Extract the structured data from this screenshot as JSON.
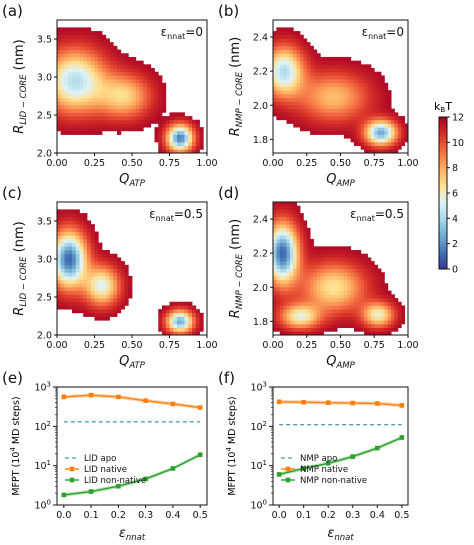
{
  "colorbar": {
    "label": "k",
    "label_sub": "B",
    "label_tail": "T",
    "ticks": [
      "0",
      "2",
      "4",
      "6",
      "8",
      "10",
      "12"
    ],
    "range": [
      0,
      12
    ],
    "colors": [
      "#313695",
      "#4575b4",
      "#74add1",
      "#abd9e9",
      "#e0f3f8",
      "#fee090",
      "#fdae61",
      "#f46d43",
      "#d73027",
      "#a50026"
    ]
  },
  "chart_data": [
    {
      "panel": "(a)",
      "type": "heatmap",
      "epsilon_label": "ε",
      "epsilon_sub": "nnat",
      "epsilon_value": "=0",
      "xlabel": "Q",
      "xlabel_sub": "ATP",
      "ylabel": "R",
      "ylabel_sub": "LID − CORE",
      "ylabel_unit": " (nm)",
      "xlim": [
        0.0,
        1.0
      ],
      "ylim": [
        2.0,
        3.75
      ],
      "xticks": [
        "0.00",
        "0.25",
        "0.50",
        "0.75",
        "1.00"
      ],
      "yticks": [
        {
          "v": 2.0,
          "t": "2.0"
        },
        {
          "v": 2.5,
          "t": "2.5"
        },
        {
          "v": 3.0,
          "t": "3.0"
        },
        {
          "v": 3.5,
          "t": "3.5"
        }
      ],
      "minima": [
        {
          "x": 0.12,
          "y": 2.95,
          "depth": 7.0,
          "sx": 0.14,
          "sy": 0.28
        },
        {
          "x": 0.45,
          "y": 2.75,
          "depth": 4.5,
          "sx": 0.12,
          "sy": 0.2
        },
        {
          "x": 0.82,
          "y": 2.2,
          "depth": 9.5,
          "sx": 0.06,
          "sy": 0.12
        }
      ]
    },
    {
      "panel": "(b)",
      "type": "heatmap",
      "epsilon_label": "ε",
      "epsilon_sub": "nnat",
      "epsilon_value": "=0",
      "xlabel": "Q",
      "xlabel_sub": "AMP",
      "ylabel": "R",
      "ylabel_sub": "NMP − CORE",
      "ylabel_unit": " (nm)",
      "xlim": [
        0.0,
        1.0
      ],
      "ylim": [
        1.72,
        2.5
      ],
      "xticks": [
        "0.00",
        "0.25",
        "0.50",
        "0.75",
        "1.00"
      ],
      "yticks": [
        {
          "v": 1.8,
          "t": "1.8"
        },
        {
          "v": 2.0,
          "t": "2.0"
        },
        {
          "v": 2.2,
          "t": "2.2"
        },
        {
          "v": 2.4,
          "t": "2.4"
        }
      ],
      "minima": [
        {
          "x": 0.08,
          "y": 2.2,
          "depth": 7.0,
          "sx": 0.1,
          "sy": 0.1
        },
        {
          "x": 0.45,
          "y": 2.05,
          "depth": 4.0,
          "sx": 0.18,
          "sy": 0.1
        },
        {
          "x": 0.8,
          "y": 1.84,
          "depth": 8.5,
          "sx": 0.08,
          "sy": 0.05
        }
      ]
    },
    {
      "panel": "(c)",
      "type": "heatmap",
      "epsilon_label": "ε",
      "epsilon_sub": "nnat",
      "epsilon_value": "=0.5",
      "xlabel": "Q",
      "xlabel_sub": "ATP",
      "ylabel": "R",
      "ylabel_sub": "LID − CORE",
      "ylabel_unit": " (nm)",
      "xlim": [
        0.0,
        1.0
      ],
      "ylim": [
        2.0,
        3.75
      ],
      "xticks": [
        "0.00",
        "0.25",
        "0.50",
        "0.75",
        "1.00"
      ],
      "yticks": [
        {
          "v": 2.0,
          "t": "2.0"
        },
        {
          "v": 2.5,
          "t": "2.5"
        },
        {
          "v": 3.0,
          "t": "3.0"
        },
        {
          "v": 3.5,
          "t": "3.5"
        }
      ],
      "minima": [
        {
          "x": 0.08,
          "y": 3.0,
          "depth": 10.0,
          "sx": 0.08,
          "sy": 0.25
        },
        {
          "x": 0.3,
          "y": 2.65,
          "depth": 6.0,
          "sx": 0.08,
          "sy": 0.18
        },
        {
          "x": 0.82,
          "y": 2.18,
          "depth": 8.5,
          "sx": 0.06,
          "sy": 0.1
        }
      ]
    },
    {
      "panel": "(d)",
      "type": "heatmap",
      "epsilon_label": "ε",
      "epsilon_sub": "nnat",
      "epsilon_value": "=0.5",
      "xlabel": "Q",
      "xlabel_sub": "AMP",
      "ylabel": "R",
      "ylabel_sub": "NMP − CORE",
      "ylabel_unit": " (nm)",
      "xlim": [
        0.0,
        1.0
      ],
      "ylim": [
        1.72,
        2.5
      ],
      "xticks": [
        "0.00",
        "0.25",
        "0.50",
        "0.75",
        "1.00"
      ],
      "yticks": [
        {
          "v": 1.8,
          "t": "1.8"
        },
        {
          "v": 2.0,
          "t": "2.0"
        },
        {
          "v": 2.2,
          "t": "2.2"
        },
        {
          "v": 2.4,
          "t": "2.4"
        }
      ],
      "minima": [
        {
          "x": 0.07,
          "y": 2.2,
          "depth": 10.0,
          "sx": 0.08,
          "sy": 0.12
        },
        {
          "x": 0.45,
          "y": 2.0,
          "depth": 5.0,
          "sx": 0.16,
          "sy": 0.1
        },
        {
          "x": 0.2,
          "y": 1.83,
          "depth": 5.5,
          "sx": 0.1,
          "sy": 0.05
        },
        {
          "x": 0.78,
          "y": 1.84,
          "depth": 5.5,
          "sx": 0.08,
          "sy": 0.05
        }
      ]
    },
    {
      "panel": "(e)",
      "type": "line",
      "yscale": "log",
      "x": [
        0.0,
        0.1,
        0.2,
        0.3,
        0.4,
        0.5
      ],
      "xticks": [
        "0.0",
        "0.1",
        "0.2",
        "0.3",
        "0.4",
        "0.5"
      ],
      "xlabel": "ε",
      "xlabel_sub": "nnat",
      "ylabel": "MFPT (10",
      "ylabel_sup": "4",
      "ylabel_tail": " MD steps)",
      "ylim": [
        1,
        1000
      ],
      "yticks": [
        {
          "v": 1,
          "b": "10",
          "e": "0"
        },
        {
          "v": 10,
          "b": "10",
          "e": "1"
        },
        {
          "v": 100,
          "b": "10",
          "e": "2"
        },
        {
          "v": 1000,
          "b": "10",
          "e": "3"
        }
      ],
      "series": [
        {
          "name": "LID apo",
          "style": "dashed",
          "color": "#1f77b4",
          "values": [
            130,
            130,
            130,
            130,
            130,
            130
          ]
        },
        {
          "name": "LID native",
          "style": "marker",
          "color": "#ff7f0e",
          "values": [
            560,
            620,
            560,
            450,
            370,
            300
          ]
        },
        {
          "name": "LID non-native",
          "style": "marker",
          "color": "#2ca02c",
          "values": [
            1.8,
            2.2,
            3.0,
            4.6,
            8.5,
            19
          ]
        }
      ]
    },
    {
      "panel": "(f)",
      "type": "line",
      "yscale": "log",
      "x": [
        0.0,
        0.1,
        0.2,
        0.3,
        0.4,
        0.5
      ],
      "xticks": [
        "0.0",
        "0.1",
        "0.2",
        "0.3",
        "0.4",
        "0.5"
      ],
      "xlabel": "ε",
      "xlabel_sub": "nnat",
      "ylabel": "MFPT (10",
      "ylabel_sup": "4",
      "ylabel_tail": " MD steps)",
      "ylim": [
        1,
        1000
      ],
      "yticks": [
        {
          "v": 1,
          "b": "10",
          "e": "0"
        },
        {
          "v": 10,
          "b": "10",
          "e": "1"
        },
        {
          "v": 100,
          "b": "10",
          "e": "2"
        },
        {
          "v": 1000,
          "b": "10",
          "e": "3"
        }
      ],
      "series": [
        {
          "name": "NMP apo",
          "style": "dashed",
          "color": "#1f77b4",
          "values": [
            110,
            110,
            110,
            110,
            110,
            110
          ]
        },
        {
          "name": "NMP native",
          "style": "marker",
          "color": "#ff7f0e",
          "values": [
            420,
            410,
            400,
            390,
            380,
            340
          ]
        },
        {
          "name": "NMP non-native",
          "style": "marker",
          "color": "#2ca02c",
          "values": [
            6,
            8.5,
            11.5,
            17,
            28,
            52
          ]
        }
      ]
    }
  ]
}
